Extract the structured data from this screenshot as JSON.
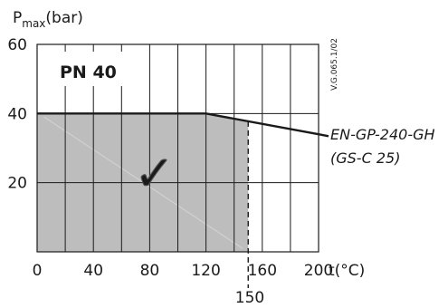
{
  "chart_data": {
    "type": "area",
    "y_label_main": "P",
    "y_label_sub": "max",
    "y_label_unit": "(bar)",
    "x_label": "t(°C)",
    "x_ticks": [
      "0",
      "40",
      "80",
      "120",
      "160",
      "200"
    ],
    "y_ticks": [
      "20",
      "40",
      "60"
    ],
    "x_tick_values": [
      0,
      40,
      80,
      120,
      160,
      200
    ],
    "y_tick_values": [
      20,
      40,
      60
    ],
    "xlim": [
      0,
      200
    ],
    "ylim": [
      0,
      60
    ],
    "grid": true,
    "grid_step_x": 20,
    "grid_step_y": 20,
    "pressure_line": [
      {
        "x": 0,
        "y": 40
      },
      {
        "x": 120,
        "y": 40
      },
      {
        "x": 200,
        "y": 34
      }
    ],
    "allowed_region_max_t": 150,
    "temperature_limit": 150,
    "temperature_limit_label": "150",
    "badge": "PN 40",
    "material_label_1": "EN-GP-240-GH",
    "material_label_2": "(GS-C 25)",
    "drawing_code": "V.G.065.1/02",
    "check_mark": "✓",
    "colors": {
      "fill": "#bdbdbd",
      "line": "#1a1a1a",
      "grid": "#1a1a1a"
    }
  }
}
